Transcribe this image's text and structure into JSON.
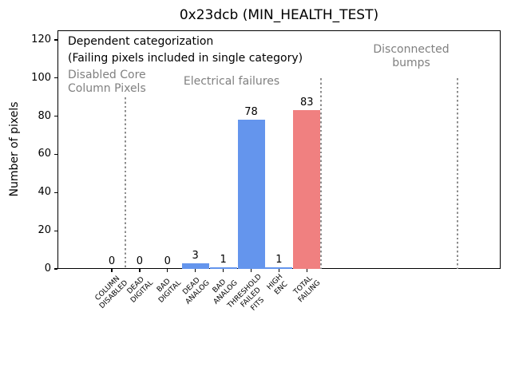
{
  "chart_data": {
    "type": "bar",
    "title": "0x23dcb (MIN_HEALTH_TEST)",
    "ylabel": "Number of pixels",
    "xlabel": "",
    "categories": [
      "COLUMN\nDISABLED",
      "DEAD\nDIGITAL",
      "BAD\nDIGITAL",
      "DEAD\nANALOG",
      "BAD\nANALOG",
      "THRESHOLD\nFAILED\nFITS",
      "HIGH\nENC",
      "TOTAL\nFAILING"
    ],
    "values": [
      0,
      0,
      0,
      3,
      1,
      78,
      1,
      83
    ],
    "bar_colors": [
      "#6495ed",
      "#6495ed",
      "#6495ed",
      "#6495ed",
      "#6495ed",
      "#6495ed",
      "#6495ed",
      "#f08080"
    ],
    "yticks": [
      0,
      20,
      40,
      60,
      80,
      100,
      120
    ],
    "ylim": [
      0,
      125
    ],
    "grid": false,
    "legend": "none",
    "value_labels_shown": true,
    "annotations": [
      {
        "id": "dependent-categorization-note",
        "text": "Dependent categorization",
        "color": "#000000",
        "x": 13,
        "y": 6,
        "align": "left"
      },
      {
        "id": "failing-pixels-note",
        "text": "(Failing pixels included in single category)",
        "color": "#000000",
        "x": 13,
        "y": 27,
        "align": "left"
      },
      {
        "id": "section-label-disabled-core",
        "text": "Disabled Core\nColumn Pixels",
        "color": "#808080",
        "x": 13,
        "y": 48,
        "align": "left"
      },
      {
        "id": "section-label-electrical-failures",
        "text": "Electrical failures",
        "color": "#808080",
        "x": 218,
        "y": 56,
        "align": "center"
      },
      {
        "id": "section-label-disconnected-bumps",
        "text": "Disconnected\nbumps",
        "color": "#808080",
        "x": 443,
        "y": 16,
        "align": "center"
      }
    ],
    "separators": [
      {
        "after_category_index": 0.5,
        "ymax_data": 90
      },
      {
        "after_category_index": 7.5,
        "ymax_data": 100
      },
      {
        "after_category_index": 12.4,
        "ymax_data": 100
      }
    ],
    "separator_color": "#8c8c8c",
    "axis_color": "#000000",
    "background_color": "#ffffff"
  }
}
